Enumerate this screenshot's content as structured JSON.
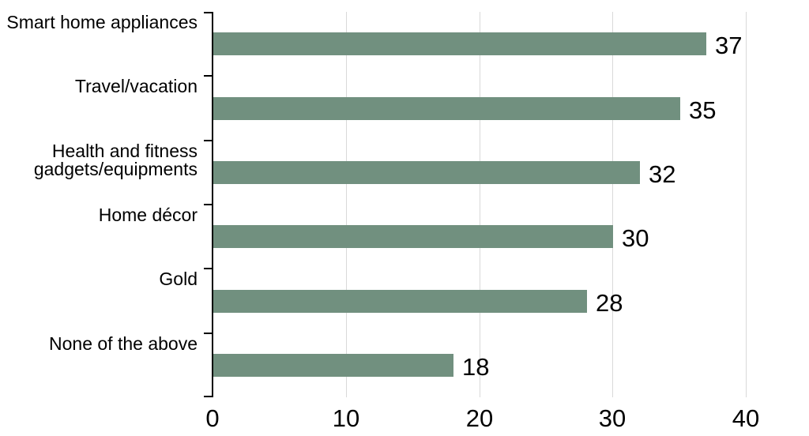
{
  "chart_data": {
    "type": "bar",
    "orientation": "horizontal",
    "title": "",
    "categories": [
      "Smart home appliances",
      "Travel/vacation",
      "Health and fitness gadgets/equipments",
      "Home décor",
      "Gold",
      "None of the above"
    ],
    "values": [
      37,
      35,
      32,
      30,
      28,
      18
    ],
    "data_labels": [
      "37",
      "35",
      "32",
      "30",
      "28",
      "18"
    ],
    "x_ticks": [
      0,
      10,
      20,
      30,
      40
    ],
    "xlim": [
      0,
      40
    ],
    "grid": "vertical-major",
    "legend": false,
    "colors": {
      "bar": "#71907F",
      "gridline": "#D9D9D9",
      "axis": "#000000",
      "text": "#000000",
      "background": "#FFFFFF"
    }
  }
}
